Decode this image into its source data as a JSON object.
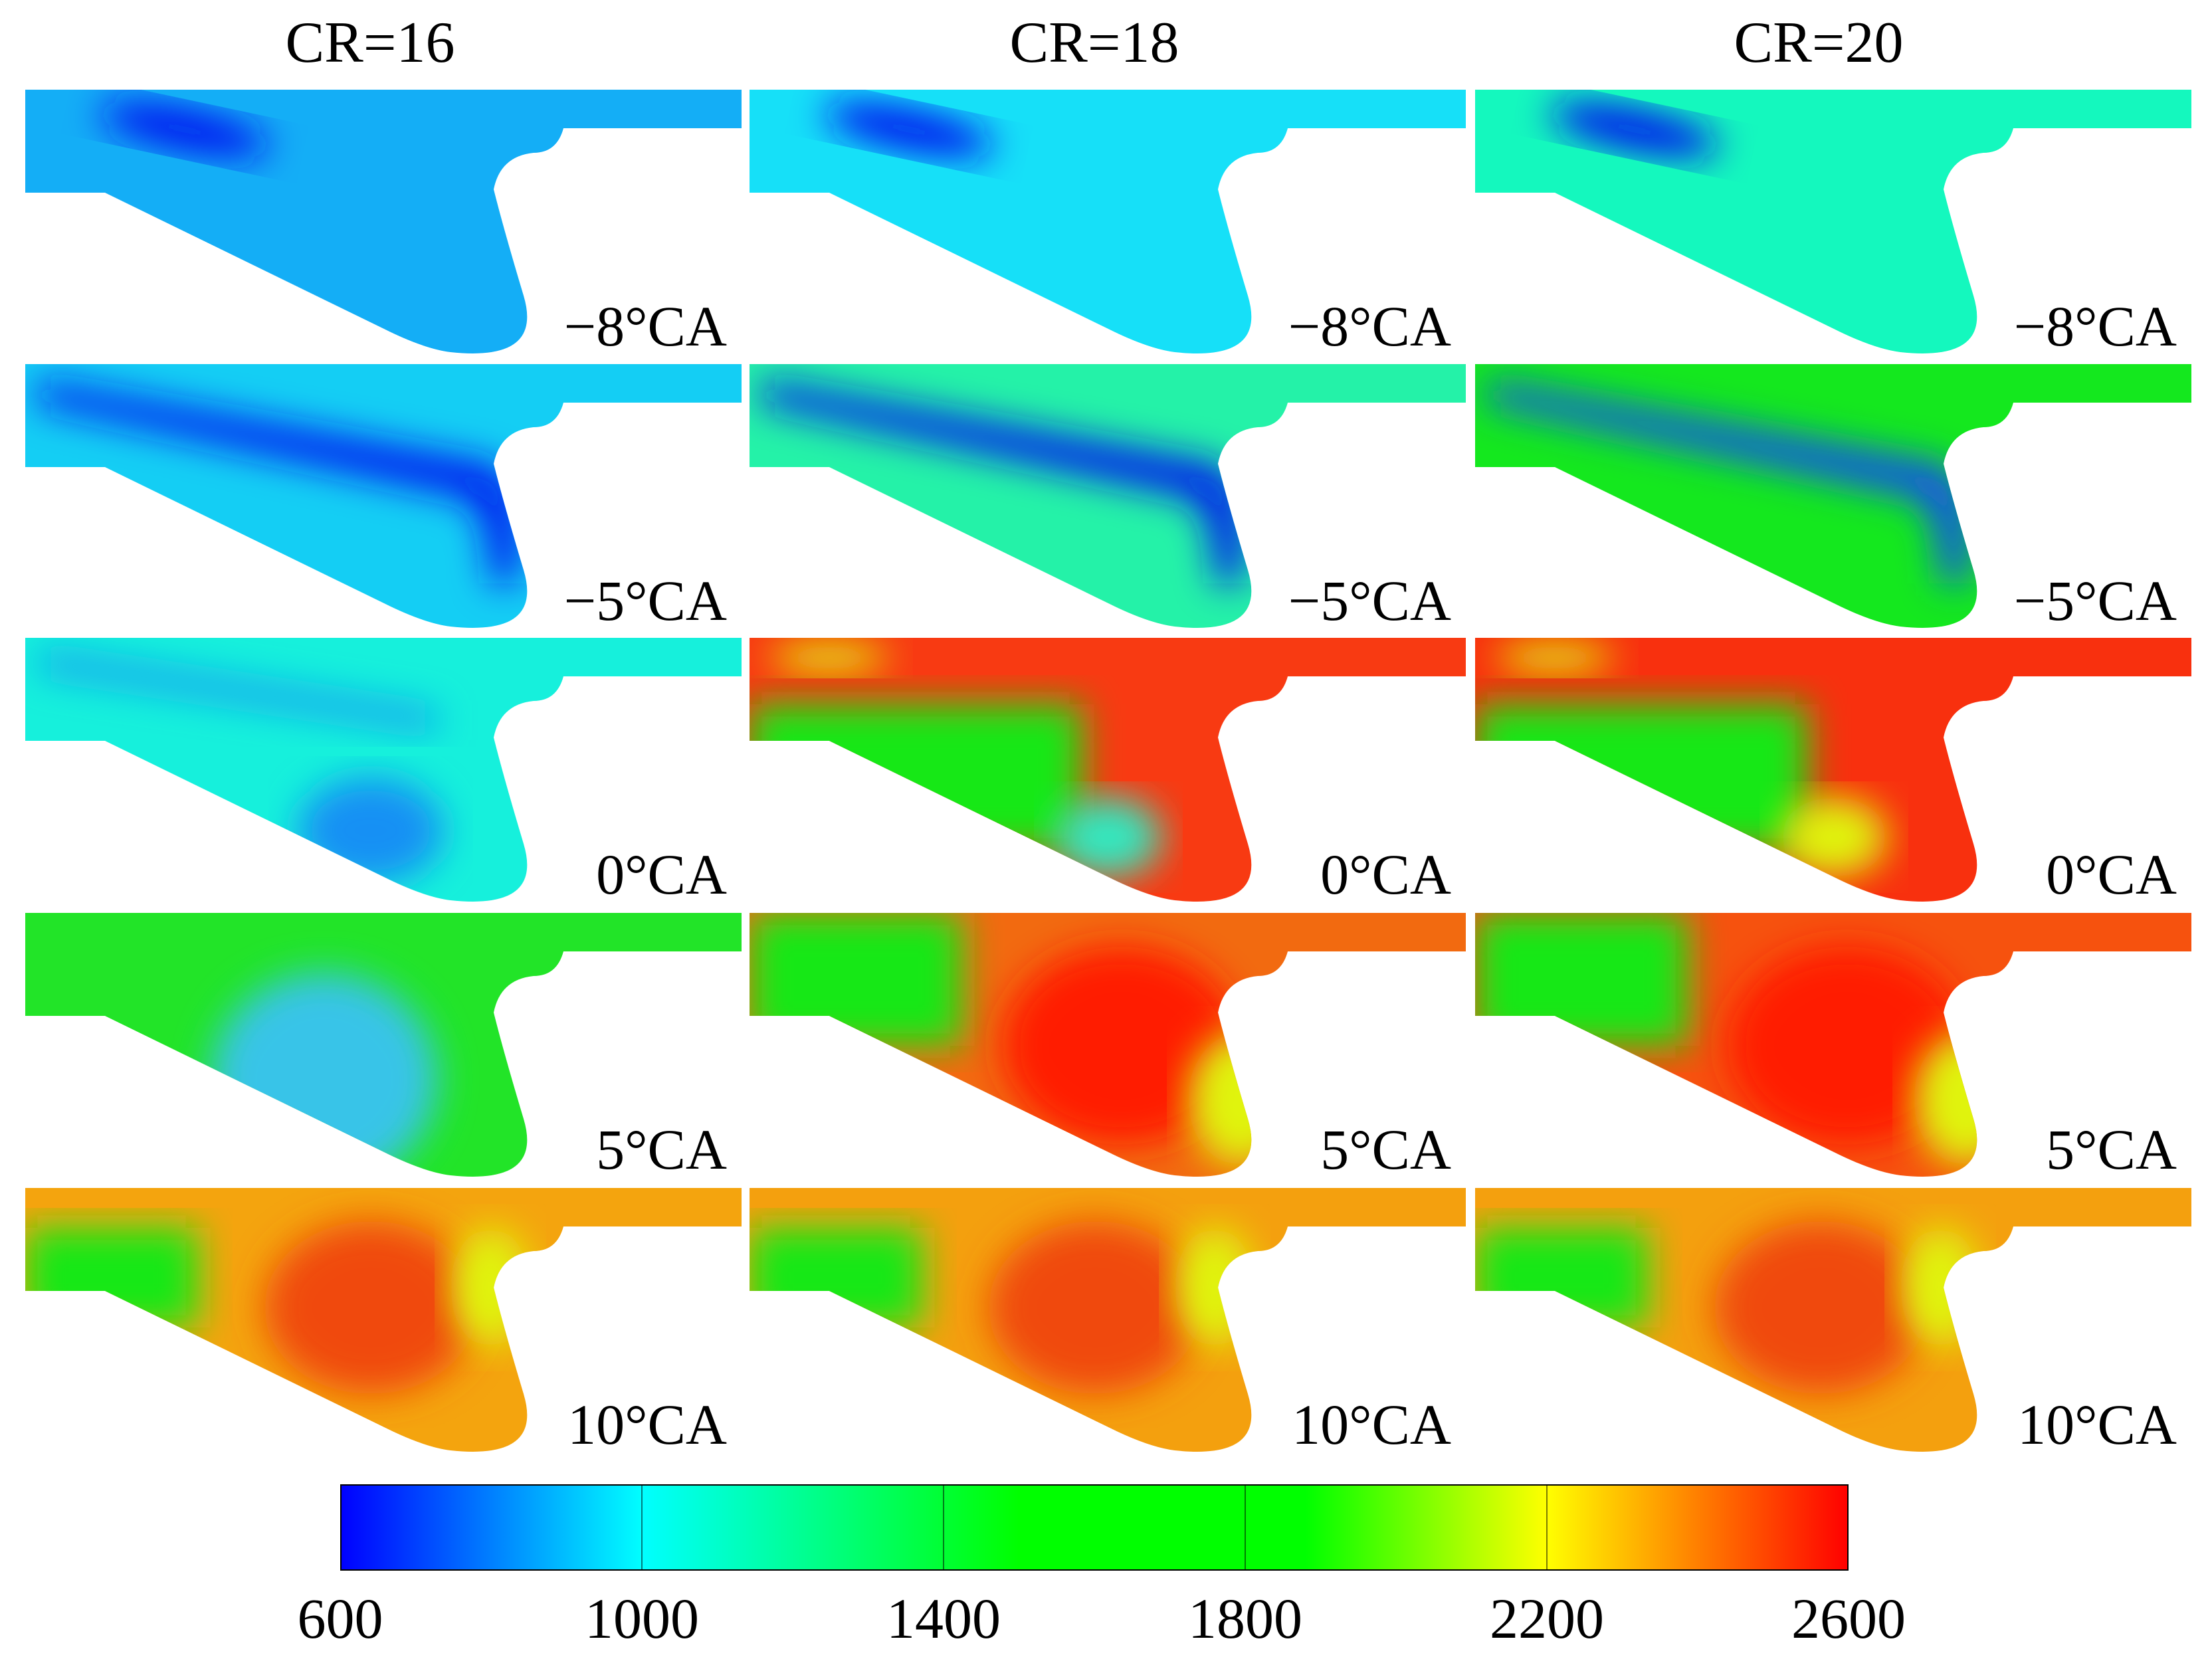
{
  "columns": [
    {
      "label": "CR=16"
    },
    {
      "label": "CR=18"
    },
    {
      "label": "CR=20"
    }
  ],
  "rows": [
    {
      "crank_angle": "−8°CA"
    },
    {
      "crank_angle": "−5°CA"
    },
    {
      "crank_angle": "0°CA"
    },
    {
      "crank_angle": "5°CA"
    },
    {
      "crank_angle": "10°CA"
    }
  ],
  "colorbar": {
    "ticks": [
      "600",
      "1000",
      "1400",
      "1800",
      "2200",
      "2600"
    ],
    "min": 600,
    "max": 2600,
    "colors": [
      "#0000ff",
      "#00ffff",
      "#00ff00",
      "#ffff00",
      "#ff0000"
    ]
  },
  "field_colors": {
    "c16_m8": "#14aef6",
    "c18_m8": "#16e0f8",
    "c20_m8": "#14f8be",
    "c16_m5": "#14cef4",
    "c18_m5": "#24f2a8",
    "c20_m5": "#14e81e",
    "c16_0": "#16f0dc",
    "c18_0": "#f83a12",
    "c20_0": "#f8300e",
    "c16_5": "#22e428",
    "c18_5": "#f26a10",
    "c20_5": "#f6520e",
    "c16_10": "#f4a40e",
    "c18_10": "#f4a00e",
    "c20_10": "#f4a00e",
    "jet": "#0018f0",
    "jet_light": "#1490f4",
    "hot": "#ff1a00",
    "green": "#18e814",
    "yellow": "#e0f40c"
  }
}
